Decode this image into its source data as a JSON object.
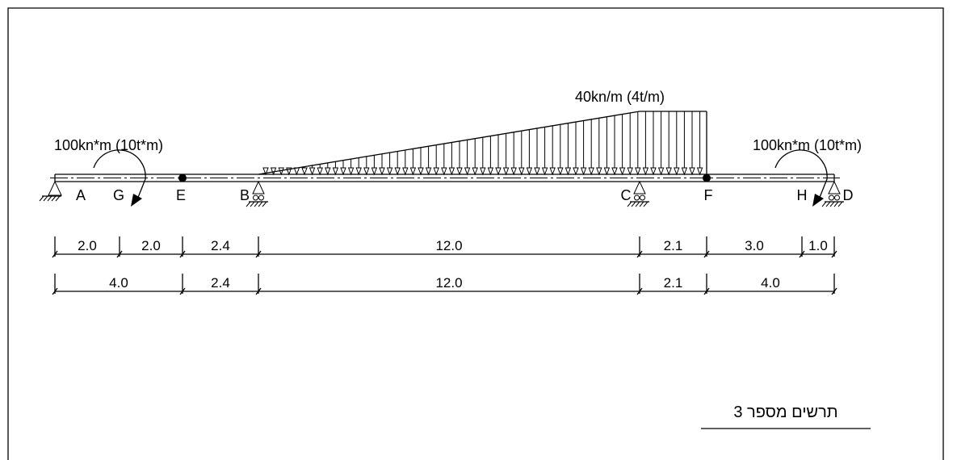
{
  "nodes": [
    {
      "label": "A"
    },
    {
      "label": "G"
    },
    {
      "label": "E"
    },
    {
      "label": "B"
    },
    {
      "label": "C"
    },
    {
      "label": "F"
    },
    {
      "label": "H"
    },
    {
      "label": "D"
    }
  ],
  "loads": {
    "distributed": "40kn/m (4t/m)",
    "moment_left": "100kn*m (10t*m)",
    "moment_right": "100kn*m (10t*m)"
  },
  "dimensions": {
    "row1": [
      "2.0",
      "2.0",
      "2.4",
      "12.0",
      "2.1",
      "3.0",
      "1.0"
    ],
    "row2": [
      "4.0",
      "2.4",
      "12.0",
      "2.1",
      "4.0"
    ]
  },
  "caption": "תרשים מספר 3"
}
